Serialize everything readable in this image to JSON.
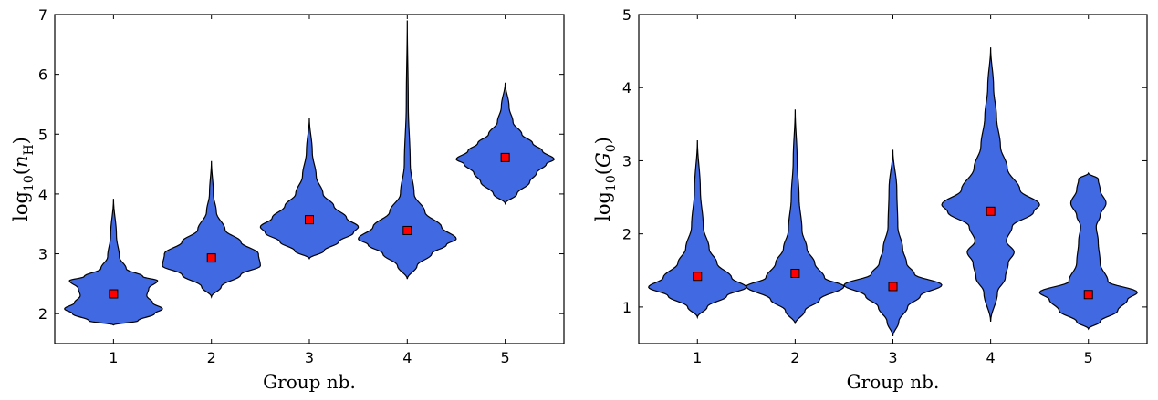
{
  "chart_data": [
    {
      "type": "violin",
      "xlabel": "Group nb.",
      "ylabel": {
        "base": "log",
        "sub": "10",
        "var": "n",
        "varsub": "H"
      },
      "categories": [
        "1",
        "2",
        "3",
        "4",
        "5"
      ],
      "xlim": [
        0.4,
        5.6
      ],
      "ylim": [
        1.5,
        7
      ],
      "yticks": [
        "2",
        "3",
        "4",
        "5",
        "6",
        "7"
      ],
      "fill_color": "#4169E1",
      "median_color": "#FF0000",
      "medians": [
        2.33,
        2.93,
        3.57,
        3.39,
        4.61
      ],
      "extents": [
        [
          1.81,
          3.92
        ],
        [
          2.28,
          4.55
        ],
        [
          2.92,
          5.27
        ],
        [
          2.58,
          6.9
        ],
        [
          3.84,
          5.86
        ]
      ],
      "profiles": [
        [
          [
            1.81,
            0.0
          ],
          [
            1.88,
            0.25
          ],
          [
            2.0,
            0.42
          ],
          [
            2.08,
            0.5
          ],
          [
            2.18,
            0.4
          ],
          [
            2.3,
            0.34
          ],
          [
            2.42,
            0.36
          ],
          [
            2.55,
            0.45
          ],
          [
            2.62,
            0.3
          ],
          [
            2.75,
            0.13
          ],
          [
            2.95,
            0.06
          ],
          [
            3.3,
            0.03
          ],
          [
            3.92,
            0.0
          ]
        ],
        [
          [
            2.28,
            0.0
          ],
          [
            2.45,
            0.1
          ],
          [
            2.65,
            0.3
          ],
          [
            2.8,
            0.5
          ],
          [
            3.0,
            0.48
          ],
          [
            3.2,
            0.3
          ],
          [
            3.4,
            0.14
          ],
          [
            3.7,
            0.05
          ],
          [
            4.0,
            0.02
          ],
          [
            4.55,
            0.0
          ]
        ],
        [
          [
            2.92,
            0.0
          ],
          [
            3.05,
            0.15
          ],
          [
            3.2,
            0.3
          ],
          [
            3.35,
            0.45
          ],
          [
            3.45,
            0.5
          ],
          [
            3.6,
            0.38
          ],
          [
            3.8,
            0.25
          ],
          [
            4.0,
            0.14
          ],
          [
            4.3,
            0.07
          ],
          [
            4.7,
            0.03
          ],
          [
            5.27,
            0.0
          ]
        ],
        [
          [
            2.58,
            0.0
          ],
          [
            2.8,
            0.1
          ],
          [
            3.0,
            0.25
          ],
          [
            3.15,
            0.4
          ],
          [
            3.25,
            0.5
          ],
          [
            3.45,
            0.35
          ],
          [
            3.7,
            0.18
          ],
          [
            4.0,
            0.07
          ],
          [
            4.5,
            0.03
          ],
          [
            5.5,
            0.01
          ],
          [
            6.9,
            0.0
          ]
        ],
        [
          [
            3.84,
            0.0
          ],
          [
            4.0,
            0.12
          ],
          [
            4.2,
            0.25
          ],
          [
            4.35,
            0.32
          ],
          [
            4.5,
            0.42
          ],
          [
            4.58,
            0.5
          ],
          [
            4.72,
            0.38
          ],
          [
            4.85,
            0.28
          ],
          [
            5.0,
            0.17
          ],
          [
            5.2,
            0.08
          ],
          [
            5.45,
            0.04
          ],
          [
            5.86,
            0.0
          ]
        ]
      ]
    },
    {
      "type": "violin",
      "xlabel": "Group nb.",
      "ylabel": {
        "base": "log",
        "sub": "10",
        "var": "G",
        "varsub": "0"
      },
      "categories": [
        "1",
        "2",
        "3",
        "4",
        "5"
      ],
      "xlim": [
        0.4,
        5.6
      ],
      "ylim": [
        0.5,
        5
      ],
      "yticks": [
        "1",
        "2",
        "3",
        "4",
        "5"
      ],
      "fill_color": "#4169E1",
      "median_color": "#FF0000",
      "medians": [
        1.42,
        1.46,
        1.28,
        2.31,
        1.17
      ],
      "extents": [
        [
          0.86,
          3.28
        ],
        [
          0.77,
          3.7
        ],
        [
          0.6,
          3.15
        ],
        [
          0.8,
          4.55
        ],
        [
          0.7,
          2.83
        ]
      ],
      "profiles": [
        [
          [
            0.86,
            0.0
          ],
          [
            1.0,
            0.1
          ],
          [
            1.15,
            0.3
          ],
          [
            1.27,
            0.5
          ],
          [
            1.4,
            0.35
          ],
          [
            1.6,
            0.2
          ],
          [
            1.8,
            0.12
          ],
          [
            2.1,
            0.06
          ],
          [
            2.6,
            0.03
          ],
          [
            3.28,
            0.0
          ]
        ],
        [
          [
            0.77,
            0.0
          ],
          [
            0.95,
            0.1
          ],
          [
            1.1,
            0.25
          ],
          [
            1.28,
            0.5
          ],
          [
            1.4,
            0.3
          ],
          [
            1.6,
            0.2
          ],
          [
            1.8,
            0.12
          ],
          [
            2.05,
            0.07
          ],
          [
            2.5,
            0.04
          ],
          [
            3.0,
            0.02
          ],
          [
            3.7,
            0.0
          ]
        ],
        [
          [
            0.6,
            0.0
          ],
          [
            0.8,
            0.06
          ],
          [
            1.0,
            0.15
          ],
          [
            1.15,
            0.28
          ],
          [
            1.3,
            0.5
          ],
          [
            1.45,
            0.22
          ],
          [
            1.6,
            0.14
          ],
          [
            1.8,
            0.1
          ],
          [
            2.1,
            0.05
          ],
          [
            2.6,
            0.04
          ],
          [
            3.15,
            0.0
          ]
        ],
        [
          [
            0.8,
            0.0
          ],
          [
            1.2,
            0.07
          ],
          [
            1.4,
            0.15
          ],
          [
            1.6,
            0.18
          ],
          [
            1.75,
            0.24
          ],
          [
            1.9,
            0.16
          ],
          [
            2.1,
            0.22
          ],
          [
            2.3,
            0.44
          ],
          [
            2.4,
            0.5
          ],
          [
            2.6,
            0.3
          ],
          [
            2.9,
            0.17
          ],
          [
            3.2,
            0.1
          ],
          [
            3.6,
            0.06
          ],
          [
            4.0,
            0.03
          ],
          [
            4.55,
            0.0
          ]
        ],
        [
          [
            0.7,
            0.0
          ],
          [
            0.8,
            0.12
          ],
          [
            0.95,
            0.3
          ],
          [
            1.1,
            0.4
          ],
          [
            1.2,
            0.5
          ],
          [
            1.35,
            0.2
          ],
          [
            1.6,
            0.12
          ],
          [
            1.9,
            0.1
          ],
          [
            2.1,
            0.08
          ],
          [
            2.25,
            0.12
          ],
          [
            2.42,
            0.18
          ],
          [
            2.6,
            0.12
          ],
          [
            2.75,
            0.1
          ],
          [
            2.83,
            0.0
          ]
        ]
      ]
    }
  ]
}
